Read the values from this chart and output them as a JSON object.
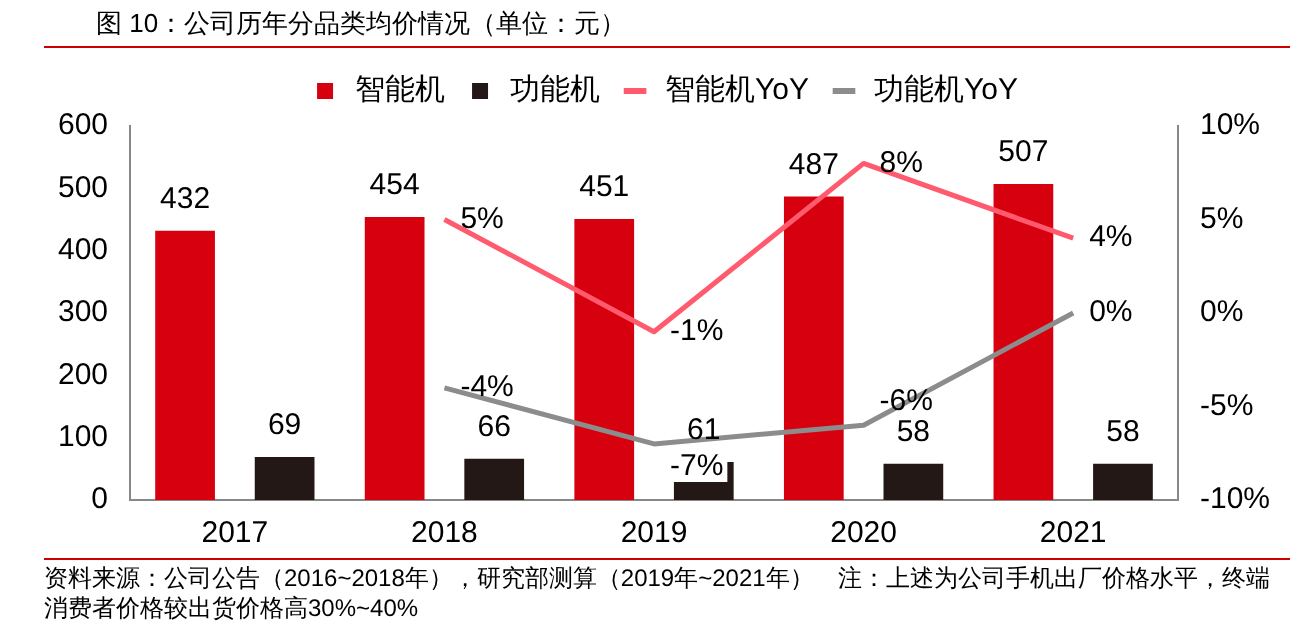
{
  "chart_data": {
    "type": "bar",
    "title": "图 10：公司历年分品类均价情况（单位：元）",
    "categories": [
      "2017",
      "2018",
      "2019",
      "2020",
      "2021"
    ],
    "series": [
      {
        "name": "智能机",
        "color": "#d7000f",
        "values": [
          432,
          454,
          451,
          487,
          507
        ]
      },
      {
        "name": "功能机",
        "color": "#231815",
        "values": [
          69,
          66,
          61,
          58,
          58
        ]
      },
      {
        "name": "智能机YoY",
        "type": "line",
        "axis": "y2",
        "color": "#ff5a6e",
        "values": [
          null,
          5,
          -1,
          8,
          4
        ],
        "value_labels": [
          null,
          "5%",
          "-1%",
          "8%",
          "4%"
        ]
      },
      {
        "name": "功能机YoY",
        "type": "line",
        "axis": "y2",
        "color": "#8c8c8c",
        "values": [
          null,
          -4,
          -7,
          -6,
          0
        ],
        "value_labels": [
          null,
          "-4%",
          "-7%",
          "-6%",
          "0%"
        ]
      }
    ],
    "ylim": [
      0,
      600
    ],
    "yticks": [
      0,
      100,
      200,
      300,
      400,
      500,
      600
    ],
    "y2lim": [
      -10,
      10
    ],
    "y2ticks": [
      {
        "value": -10,
        "label": "-10%"
      },
      {
        "value": -5,
        "label": "-5%"
      },
      {
        "value": 0,
        "label": "0%"
      },
      {
        "value": 5,
        "label": "5%"
      },
      {
        "value": 10,
        "label": "10%"
      }
    ],
    "data_labels": true,
    "legend": "top",
    "grid": false,
    "marker": "none",
    "annotations": [
      "资料来源：公司公告（2016~2018年），研究部测算（2019年~2021年）　注：上述为公司手机出厂价格水平，终端消费者价格较出货价格高30%~40%"
    ]
  }
}
